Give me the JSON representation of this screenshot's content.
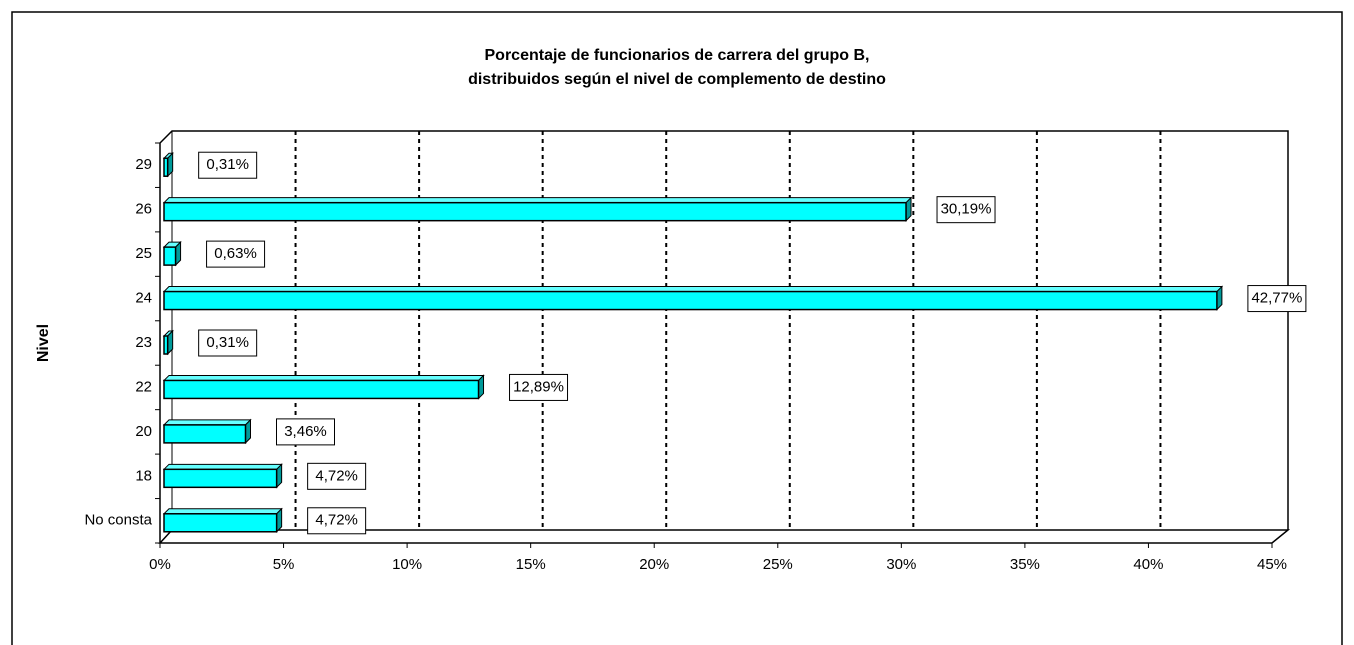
{
  "chart_data": {
    "type": "bar",
    "orientation": "horizontal",
    "title": [
      "Porcentaje de funcionarios de carrera del grupo B,",
      "distribuidos según el nivel de complemento de destino"
    ],
    "ylabel": "Nivel",
    "categories": [
      "29",
      "26",
      "25",
      "24",
      "23",
      "22",
      "20",
      "18",
      "No consta"
    ],
    "values": [
      0.31,
      30.19,
      0.63,
      42.77,
      0.31,
      12.89,
      3.46,
      4.72,
      4.72
    ],
    "value_labels": [
      "0,31%",
      "30,19%",
      "0,63%",
      "42,77%",
      "0,31%",
      "12,89%",
      "3,46%",
      "4,72%",
      "4,72%"
    ],
    "color": "#00ffff",
    "xlim": [
      0,
      45
    ],
    "xticks": [
      {
        "value": 0,
        "label": "0%"
      },
      {
        "value": 5,
        "label": "5%"
      },
      {
        "value": 10,
        "label": "10%"
      },
      {
        "value": 15,
        "label": "15%"
      },
      {
        "value": 20,
        "label": "20%"
      },
      {
        "value": 25,
        "label": "25%"
      },
      {
        "value": 30,
        "label": "30%"
      },
      {
        "value": 35,
        "label": "35%"
      },
      {
        "value": 40,
        "label": "40%"
      },
      {
        "value": 45,
        "label": "45%"
      }
    ],
    "grid": true
  }
}
